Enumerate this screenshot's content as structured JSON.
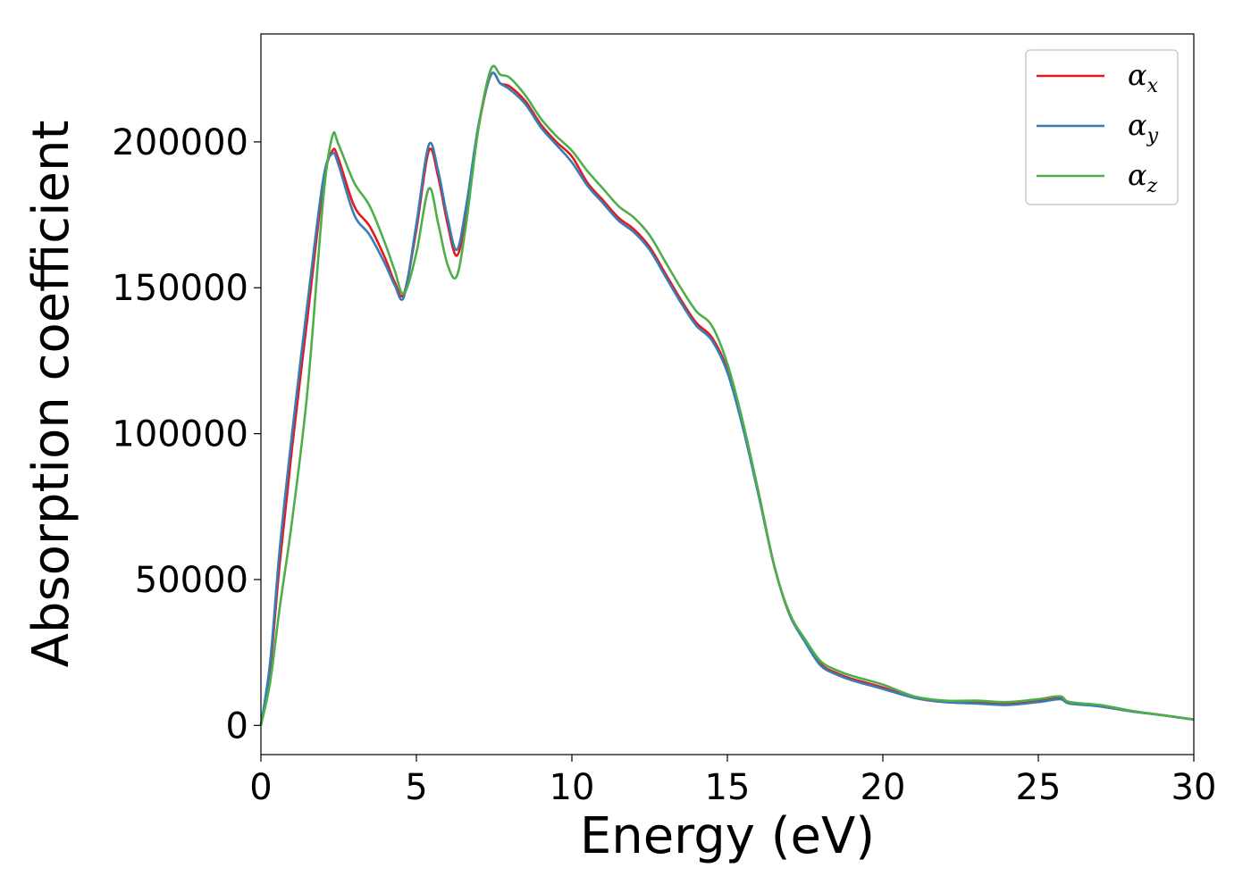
{
  "chart_data": {
    "type": "line",
    "xlabel": "Energy (eV)",
    "ylabel": "Absorption coefficient",
    "xlim": [
      0,
      30
    ],
    "ylim": [
      -10000,
      237000
    ],
    "xticks": [
      0,
      5,
      10,
      15,
      20,
      25,
      30
    ],
    "yticks": [
      0,
      50000,
      100000,
      150000,
      200000
    ],
    "grid": false,
    "legend_position": "top-right",
    "legend": [
      {
        "base": "α",
        "sub": "x",
        "color": "#e41a1c"
      },
      {
        "base": "α",
        "sub": "y",
        "color": "#377eb8"
      },
      {
        "base": "α",
        "sub": "z",
        "color": "#4daf4a"
      }
    ],
    "x": [
      0,
      0.3,
      0.6,
      1.0,
      1.5,
      2.0,
      2.3,
      2.5,
      3.0,
      3.5,
      4.0,
      4.3,
      4.6,
      5.0,
      5.4,
      5.7,
      6.0,
      6.3,
      6.6,
      7.0,
      7.4,
      7.7,
      8.0,
      8.5,
      9.0,
      9.5,
      10.0,
      10.5,
      11.0,
      11.5,
      12.0,
      12.5,
      13.0,
      13.5,
      14.0,
      14.5,
      15.0,
      15.5,
      16.0,
      16.5,
      17.0,
      17.5,
      18.0,
      18.5,
      19.0,
      20.0,
      21.0,
      22.0,
      23.0,
      24.0,
      25.0,
      25.7,
      26.0,
      27.0,
      28.0,
      29.0,
      30.0
    ],
    "series": [
      {
        "name": "αx",
        "color": "#e41a1c",
        "y": [
          0,
          20000,
          55000,
          95000,
          140000,
          185000,
          197000,
          194000,
          178000,
          171000,
          160000,
          152000,
          148000,
          170000,
          197000,
          188000,
          172000,
          161000,
          175000,
          205000,
          223000,
          220000,
          219000,
          214000,
          206000,
          200000,
          195000,
          186000,
          180000,
          174000,
          170000,
          164000,
          155000,
          146000,
          138000,
          133000,
          122000,
          103000,
          80000,
          55000,
          38000,
          29000,
          21000,
          18000,
          16000,
          13000,
          9500,
          8000,
          8000,
          7500,
          8500,
          9500,
          8000,
          6500,
          4800,
          3500,
          2000
        ]
      },
      {
        "name": "αy",
        "color": "#377eb8",
        "y": [
          0,
          22000,
          60000,
          100000,
          145000,
          187000,
          196000,
          192000,
          175000,
          168000,
          158000,
          151000,
          147000,
          172000,
          199000,
          190000,
          174000,
          163000,
          178000,
          206000,
          223000,
          220000,
          218000,
          213000,
          205000,
          199000,
          193000,
          185000,
          179000,
          173000,
          169000,
          163000,
          154000,
          145000,
          137000,
          132000,
          121000,
          102000,
          79000,
          55000,
          38000,
          28500,
          20500,
          17500,
          15500,
          12500,
          9500,
          8000,
          7500,
          7000,
          8000,
          9000,
          7500,
          6500,
          4800,
          3500,
          2000
        ]
      },
      {
        "name": "αz",
        "color": "#4daf4a",
        "y": [
          0,
          15000,
          40000,
          70000,
          115000,
          180000,
          202000,
          199000,
          186000,
          178000,
          165000,
          156000,
          148000,
          162000,
          184000,
          172000,
          158000,
          154000,
          172000,
          205000,
          225000,
          223000,
          222000,
          216000,
          208000,
          202000,
          197000,
          190000,
          184000,
          178000,
          174000,
          168000,
          159000,
          150000,
          142000,
          137000,
          124000,
          104000,
          80000,
          55000,
          38500,
          29500,
          22000,
          19000,
          17000,
          14000,
          10000,
          8500,
          8500,
          8000,
          9000,
          10000,
          8000,
          7000,
          5000,
          3500,
          2000
        ]
      }
    ]
  }
}
